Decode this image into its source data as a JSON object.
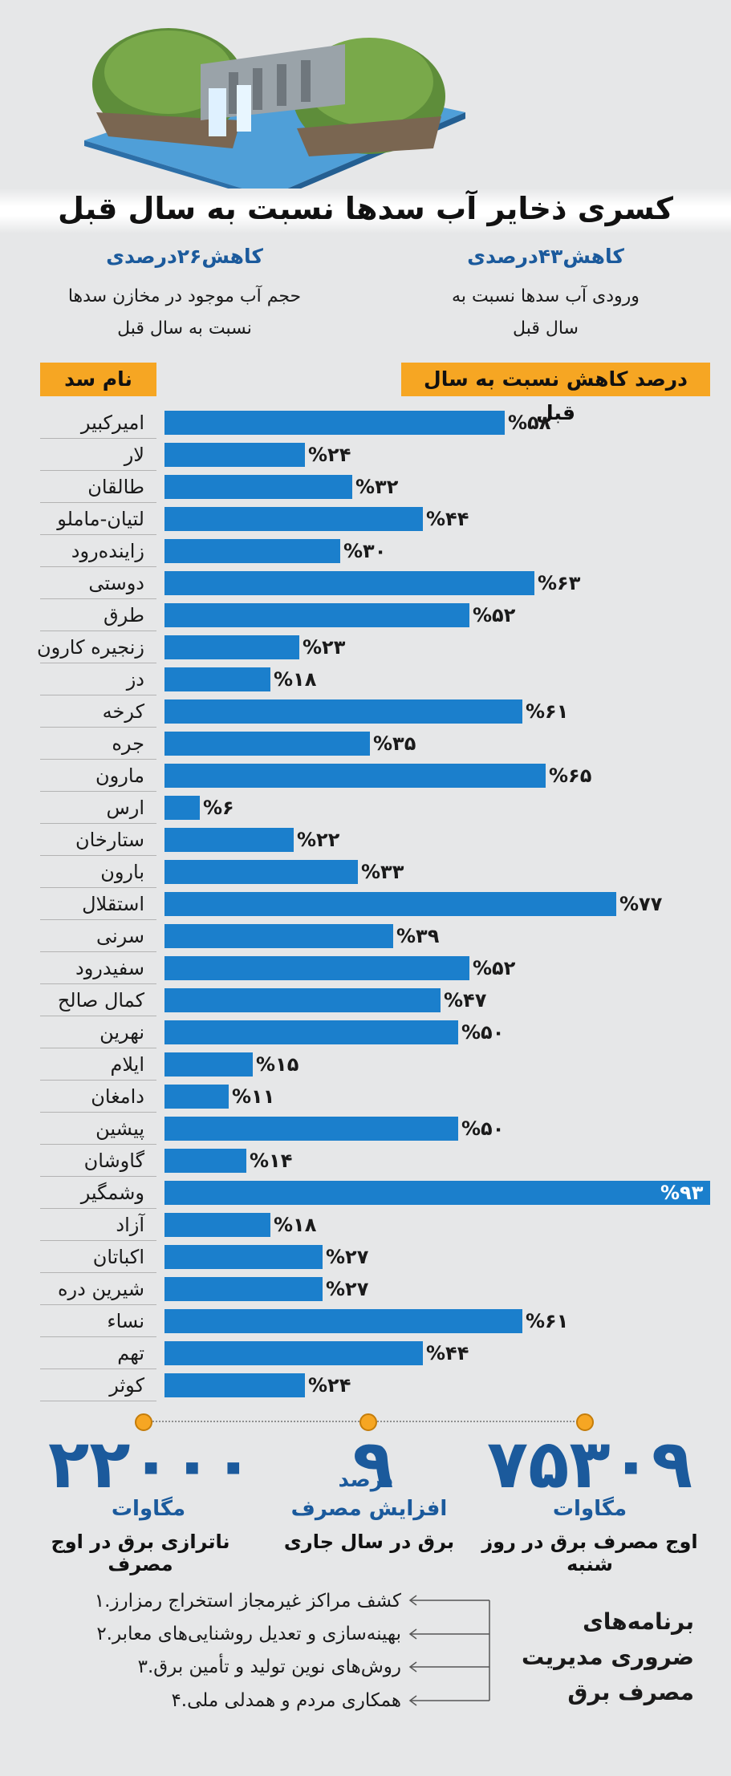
{
  "title": "کسری ذخایر آب سدها نسبت به سال قبل",
  "stats": [
    {
      "head": "کاهش۴۳درصدی",
      "body": [
        "ورودی آب سدها نسبت به",
        "سال قبل"
      ]
    },
    {
      "head": "کاهش۲۶درصدی",
      "body": [
        "حجم آب موجود  در مخازن سدها",
        "نسبت به سال قبل"
      ]
    }
  ],
  "tags": {
    "percent": "درصد کاهش نسبت به سال قبل",
    "name": "نام سد"
  },
  "colors": {
    "bar": "#1b7fcc",
    "accent": "#f6a623",
    "heading_blue": "#1b5a9c"
  },
  "chart_data": {
    "type": "bar",
    "orientation": "horizontal",
    "value_prefix": "%",
    "categories": [
      "امیرکبیر",
      "لار",
      "طالقان",
      "لتیان-ماملو",
      "زاینده‌رود",
      "دوستی",
      "طرق",
      "زنجیره کارون",
      "دز",
      "کرخه",
      "جره",
      "مارون",
      "ارس",
      "ستارخان",
      "بارون",
      "استقلال",
      "سرنی",
      "سفیدرود",
      "کمال صالح",
      "نهرین",
      "ایلام",
      "دامغان",
      "پیشین",
      "گاوشان",
      "وشمگیر",
      "آزاد",
      "اکباتان",
      "شیرین دره",
      "نساء",
      "تهم",
      "کوثر"
    ],
    "values": [
      58,
      24,
      32,
      44,
      30,
      63,
      52,
      23,
      18,
      61,
      35,
      65,
      6,
      22,
      33,
      77,
      39,
      52,
      47,
      50,
      15,
      11,
      50,
      14,
      93,
      18,
      27,
      27,
      61,
      44,
      24
    ],
    "labels": [
      "۵۸",
      "۲۴",
      "۳۲",
      "۴۴",
      "۳۰",
      "۶۳",
      "۵۲",
      "۲۳",
      "۱۸",
      "۶۱",
      "۳۵",
      "۶۵",
      "۶",
      "۲۲",
      "۳۳",
      "۷۷",
      "۳۹",
      "۵۲",
      "۴۷",
      "۵۰",
      "۱۵",
      "۱۱",
      "۵۰",
      "۱۴",
      "۹۳",
      "۱۸",
      "۲۷",
      "۲۷",
      "۶۱",
      "۴۴",
      "۲۴"
    ]
  },
  "facts": [
    {
      "number": "۷۵۳۰۹",
      "unit": "مگاوات",
      "desc": "اوج مصرف برق در روز شنبه"
    },
    {
      "number": "۹",
      "unit": "درصد",
      "unit2": "افزایش مصرف",
      "desc": "برق در سال جاری"
    },
    {
      "number": "۲۲۰۰۰",
      "unit": "مگاوات",
      "desc": "ناترازی برق در اوج مصرف"
    }
  ],
  "programs": {
    "heading": [
      "برنامه‌های",
      "ضروری مدیریت",
      "مصرف برق"
    ],
    "items": [
      "۱.کشف مراکز غیرمجاز استخراج رمزارز",
      "۲.بهینه‌سازی و تعدیل روشنایی‌های معابر",
      "۳.روش‌های نوین تولید و تأمین برق",
      "۴.همکاری مردم و همدلی ملی"
    ]
  }
}
